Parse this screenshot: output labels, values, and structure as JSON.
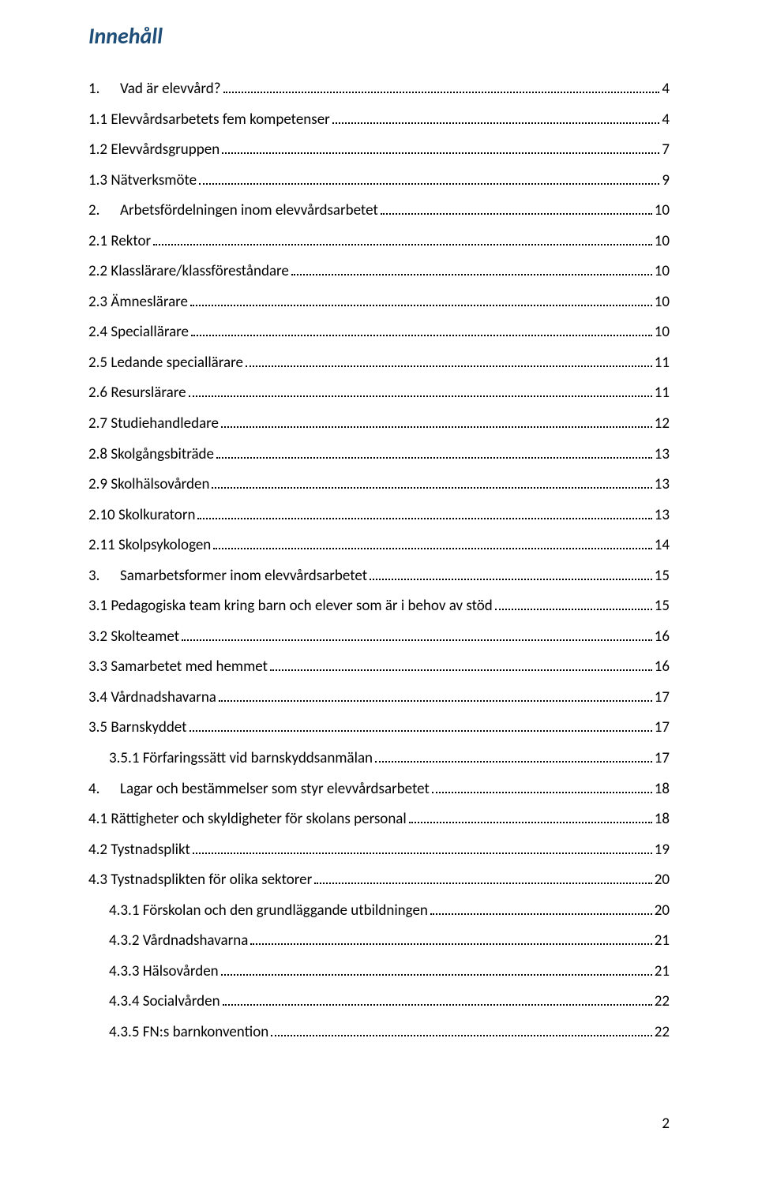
{
  "title": "Innehåll",
  "page_number": "2",
  "colors": {
    "title": "#1f4e79",
    "text": "#000000",
    "background": "#ffffff",
    "dots": "#000000"
  },
  "fonts": {
    "title_size_pt": 21,
    "title_style": "italic bold",
    "body_size_pt": 14,
    "family": "Calibri"
  },
  "toc": [
    {
      "indent": 0,
      "numcol": "1.",
      "text": "Vad är elevvård?",
      "page": "4"
    },
    {
      "indent": 1,
      "numcol": "",
      "text": "1.1 Elevvårdsarbetets fem kompetenser",
      "page": "4"
    },
    {
      "indent": 1,
      "numcol": "",
      "text": "1.2 Elevvårdsgruppen",
      "page": "7"
    },
    {
      "indent": 1,
      "numcol": "",
      "text": "1.3 Nätverksmöte",
      "page": "9"
    },
    {
      "indent": 0,
      "numcol": "2.",
      "text": "Arbetsfördelningen inom elevvårdsarbetet",
      "page": "10"
    },
    {
      "indent": 1,
      "numcol": "",
      "text": "2.1 Rektor",
      "page": "10"
    },
    {
      "indent": 1,
      "numcol": "",
      "text": "2.2 Klasslärare/klassföreståndare",
      "page": "10"
    },
    {
      "indent": 1,
      "numcol": "",
      "text": "2.3 Ämneslärare",
      "page": "10"
    },
    {
      "indent": 1,
      "numcol": "",
      "text": "2.4 Speciallärare",
      "page": "10"
    },
    {
      "indent": 1,
      "numcol": "",
      "text": "2.5 Ledande speciallärare",
      "page": "11"
    },
    {
      "indent": 1,
      "numcol": "",
      "text": "2.6 Resurslärare",
      "page": "11"
    },
    {
      "indent": 1,
      "numcol": "",
      "text": "2.7 Studiehandledare",
      "page": "12"
    },
    {
      "indent": 1,
      "numcol": "",
      "text": "2.8 Skolgångsbiträde",
      "page": "13"
    },
    {
      "indent": 1,
      "numcol": "",
      "text": "2.9 Skolhälsovården",
      "page": "13"
    },
    {
      "indent": 1,
      "numcol": "",
      "text": "2.10 Skolkuratorn",
      "page": "13"
    },
    {
      "indent": 1,
      "numcol": "",
      "text": "2.11 Skolpsykologen",
      "page": "14"
    },
    {
      "indent": 0,
      "numcol": "3.",
      "text": "Samarbetsformer inom elevvårdsarbetet",
      "page": "15"
    },
    {
      "indent": 1,
      "numcol": "",
      "text": "3.1 Pedagogiska team kring barn och elever som är i behov av stöd",
      "page": "15"
    },
    {
      "indent": 1,
      "numcol": "",
      "text": "3.2 Skolteamet",
      "page": "16"
    },
    {
      "indent": 1,
      "numcol": "",
      "text": "3.3 Samarbetet med hemmet",
      "page": "16"
    },
    {
      "indent": 1,
      "numcol": "",
      "text": "3.4 Vårdnadshavarna",
      "page": "17"
    },
    {
      "indent": 1,
      "numcol": "",
      "text": "3.5 Barnskyddet",
      "page": "17"
    },
    {
      "indent": 2,
      "numcol": "",
      "text": "3.5.1 Förfaringssätt vid barnskyddsanmälan",
      "page": "17"
    },
    {
      "indent": 0,
      "numcol": "4.",
      "text": "Lagar och bestämmelser som styr elevvårdsarbetet",
      "page": "18"
    },
    {
      "indent": 1,
      "numcol": "",
      "text": "4.1 Rättigheter och skyldigheter för skolans personal",
      "page": "18"
    },
    {
      "indent": 1,
      "numcol": "",
      "text": "4.2 Tystnadsplikt",
      "page": "19"
    },
    {
      "indent": 1,
      "numcol": "",
      "text": "4.3 Tystnadsplikten för olika sektorer",
      "page": "20"
    },
    {
      "indent": 2,
      "numcol": "",
      "text": "4.3.1 Förskolan och den grundläggande utbildningen",
      "page": "20"
    },
    {
      "indent": 2,
      "numcol": "",
      "text": "4.3.2 Vårdnadshavarna",
      "page": "21"
    },
    {
      "indent": 2,
      "numcol": "",
      "text": "4.3.3 Hälsovården",
      "page": "21"
    },
    {
      "indent": 2,
      "numcol": "",
      "text": "4.3.4 Socialvården",
      "page": "22"
    },
    {
      "indent": 2,
      "numcol": "",
      "text": "4.3.5 FN:s barnkonvention",
      "page": "22"
    }
  ]
}
